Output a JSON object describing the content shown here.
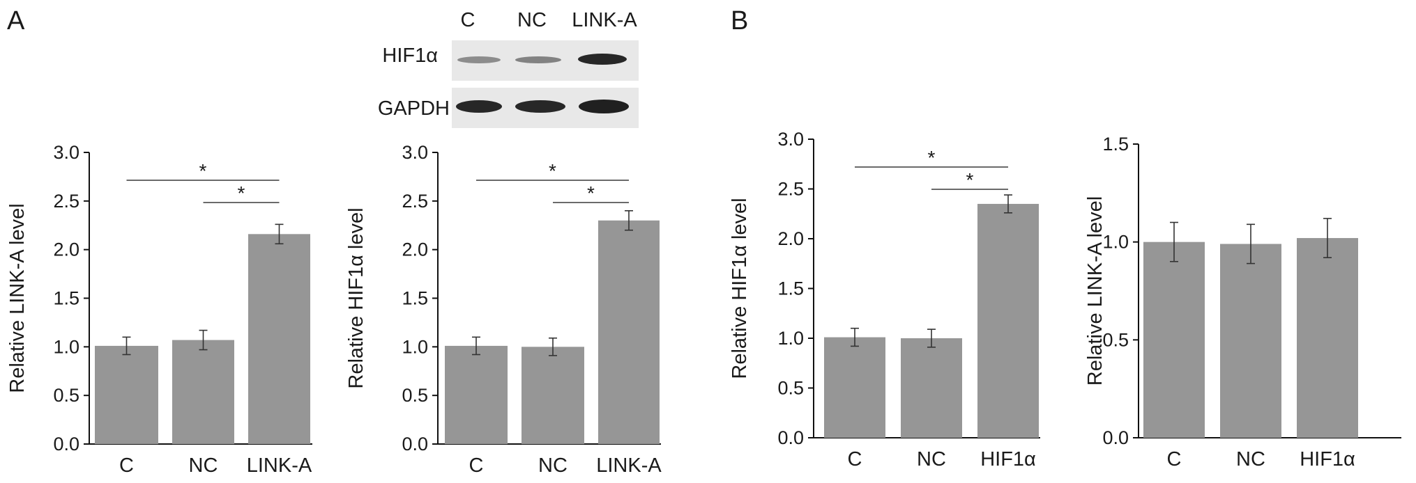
{
  "panel_labels": [
    "A",
    "B"
  ],
  "blot": {
    "lanes": [
      "C",
      "NC",
      "LINK-A"
    ],
    "rows": [
      "HIF1α",
      "GAPDH"
    ],
    "colors": {
      "background": "#e8e8e8",
      "band": "#1c1c1c"
    }
  },
  "chart_data": [
    {
      "type": "bar",
      "categories": [
        "C",
        "NC",
        "LINK-A"
      ],
      "values": [
        1.01,
        1.07,
        2.16
      ],
      "errors": [
        0.09,
        0.1,
        0.1
      ],
      "ylabel": "Relative LINK-A level",
      "ylim": [
        0,
        3.0
      ],
      "yticks": [
        "0.0",
        "0.5",
        "1.0",
        "1.5",
        "2.0",
        "2.5",
        "3.0"
      ],
      "significance": [
        {
          "from": "C",
          "to": "LINK-A",
          "label": "*"
        },
        {
          "from": "NC",
          "to": "LINK-A",
          "label": "*"
        }
      ],
      "bar_color": "#969696"
    },
    {
      "type": "bar",
      "categories": [
        "C",
        "NC",
        "LINK-A"
      ],
      "values": [
        1.01,
        1.0,
        2.3
      ],
      "errors": [
        0.09,
        0.09,
        0.1
      ],
      "ylabel": "Relative HIF1α level",
      "ylim": [
        0,
        3.0
      ],
      "yticks": [
        "0.0",
        "0.5",
        "1.0",
        "1.5",
        "2.0",
        "2.5",
        "3.0"
      ],
      "significance": [
        {
          "from": "C",
          "to": "LINK-A",
          "label": "*"
        },
        {
          "from": "NC",
          "to": "LINK-A",
          "label": "*"
        }
      ],
      "bar_color": "#969696"
    },
    {
      "type": "bar",
      "categories": [
        "C",
        "NC",
        "HIF1α"
      ],
      "values": [
        1.01,
        1.0,
        2.35
      ],
      "errors": [
        0.09,
        0.09,
        0.09
      ],
      "ylabel": "Relative HIF1α level",
      "ylim": [
        0,
        3.0
      ],
      "yticks": [
        "0.0",
        "0.5",
        "1.0",
        "1.5",
        "2.0",
        "2.5",
        "3.0"
      ],
      "significance": [
        {
          "from": "C",
          "to": "HIF1α",
          "label": "*"
        },
        {
          "from": "NC",
          "to": "HIF1α",
          "label": "*"
        }
      ],
      "bar_color": "#969696"
    },
    {
      "type": "bar",
      "categories": [
        "C",
        "NC",
        "HIF1α"
      ],
      "values": [
        1.0,
        0.99,
        1.02
      ],
      "errors": [
        0.1,
        0.1,
        0.1
      ],
      "ylabel": "Relative LINK-A level",
      "ylim": [
        0,
        1.5
      ],
      "yticks": [
        "0.0",
        "0.5",
        "1.0",
        "1.5"
      ],
      "significance": [],
      "bar_color": "#969696"
    }
  ]
}
